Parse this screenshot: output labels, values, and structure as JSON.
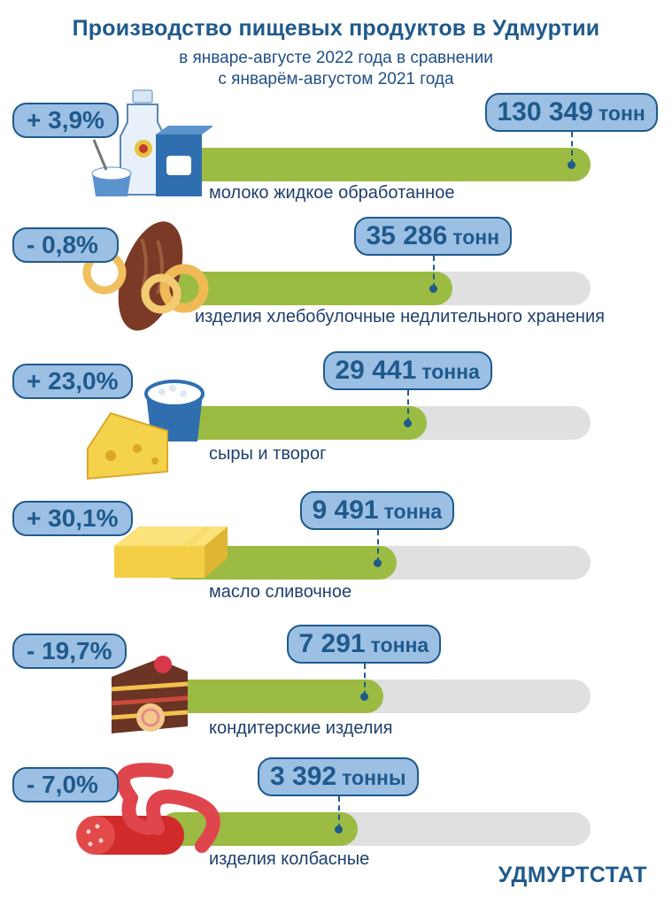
{
  "title": "Производство пищевых продуктов в Удмуртии",
  "subtitle_line1": "в январе-августе 2022 года в сравнении",
  "subtitle_line2": "с январём-августом 2021 года",
  "footer": "УДМУРТСТАТ",
  "colors": {
    "accent": "#1f5a8c",
    "badge_fill": "#9cbfe4",
    "bar_fill": "#9bbb42",
    "bar_track": "#e0e0e0"
  },
  "chart_data": {
    "type": "bar",
    "orientation": "horizontal",
    "title": "Производство пищевых продуктов в Удмуртии",
    "categories": [
      "молоко жидкое обработанное",
      "изделия хлебобулочные недлительного хранения",
      "сыры и творог",
      "масло сливочное",
      "кондитерские изделия",
      "изделия колбасные"
    ],
    "values": [
      130349,
      35286,
      29441,
      9491,
      7291,
      3392
    ],
    "value_labels": [
      "130 349",
      "35 286",
      "29 441",
      "9 491",
      "7 291",
      "3 392"
    ],
    "units": [
      "тонн",
      "тонн",
      "тонна",
      "тонна",
      "тонна",
      "тонны"
    ],
    "change_pct": [
      "+ 3,9%",
      "- 0,8%",
      "+ 23,0%",
      "+ 30,1%",
      "- 19,7%",
      "- 7,0%"
    ],
    "bar_fill_fraction": [
      1.0,
      0.68,
      0.62,
      0.55,
      0.52,
      0.46
    ]
  }
}
